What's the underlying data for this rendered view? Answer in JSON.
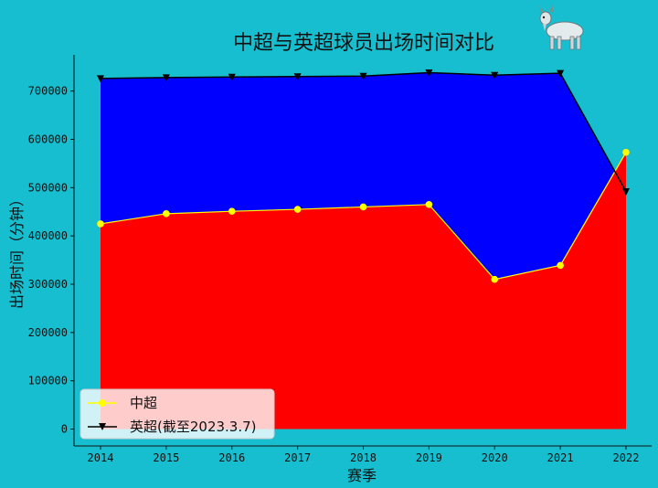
{
  "chart_data": {
    "type": "area",
    "title": "中超与英超球员出场时间对比",
    "xlabel": "赛季",
    "ylabel": "出场时间（分钟）",
    "x": [
      "2014",
      "2015",
      "2016",
      "2017",
      "2018",
      "2019",
      "2020",
      "2021",
      "2022"
    ],
    "ylim": [
      -35000,
      775000
    ],
    "yticks": [
      "0",
      "100000",
      "200000",
      "300000",
      "400000",
      "500000",
      "600000",
      "700000"
    ],
    "series": [
      {
        "name": "中超",
        "values": [
          425000,
          446000,
          451000,
          455000,
          460000,
          465000,
          310000,
          339000,
          573000
        ],
        "line_color": "#ffff00",
        "fill_color": "#ff0000",
        "marker": "circle"
      },
      {
        "name": "英超(截至2023.3.7)",
        "values": [
          726000,
          728000,
          729000,
          730000,
          731000,
          738000,
          733000,
          737000,
          492000
        ],
        "line_color": "#000000",
        "fill_color": "#0000ff",
        "marker": "triangle-down"
      }
    ],
    "legend": "lower-left",
    "grid": false
  },
  "decoration": {
    "icon": "goat-icon"
  }
}
